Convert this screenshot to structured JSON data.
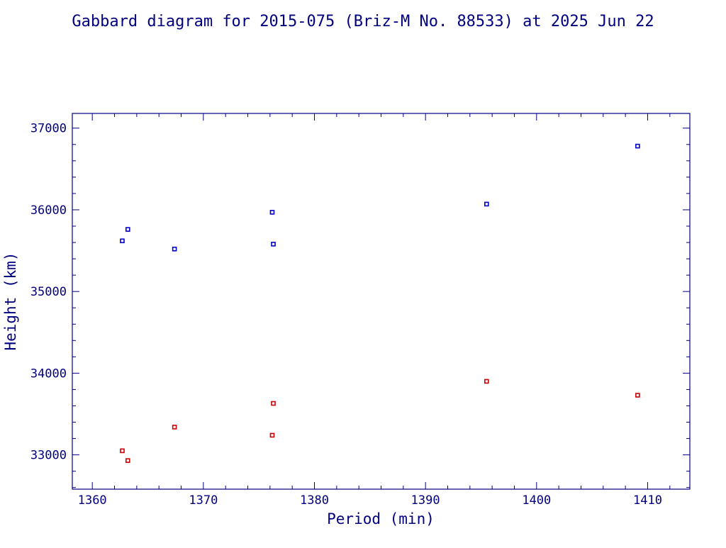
{
  "chart_data": {
    "type": "scatter",
    "title": "Gabbard diagram for 2015-075 (Briz-M No. 88533) at 2025 Jun 22",
    "xlabel": "Period (min)",
    "ylabel": "Height (km)",
    "xlim": [
      1358.2,
      1413.8
    ],
    "ylim": [
      32580,
      37180
    ],
    "x_ticks": [
      1360,
      1370,
      1380,
      1390,
      1400,
      1410
    ],
    "y_ticks": [
      33000,
      34000,
      35000,
      36000,
      37000
    ],
    "x_minor_step": 2,
    "y_minor_step": 200,
    "grid": false,
    "legend": "none",
    "colors": {
      "axis": "#000080",
      "text": "#000080",
      "apogee": "#0000cc",
      "perigee": "#cc0000"
    },
    "series": [
      {
        "role": "apogee",
        "points": [
          [
            1362.7,
            35620
          ],
          [
            1363.2,
            35760
          ],
          [
            1367.4,
            35520
          ],
          [
            1376.2,
            35970
          ],
          [
            1376.3,
            35580
          ],
          [
            1395.5,
            36070
          ],
          [
            1409.1,
            36780
          ]
        ]
      },
      {
        "role": "perigee",
        "points": [
          [
            1362.7,
            33050
          ],
          [
            1363.2,
            32930
          ],
          [
            1367.4,
            33340
          ],
          [
            1376.2,
            33240
          ],
          [
            1376.3,
            33630
          ],
          [
            1395.5,
            33900
          ],
          [
            1409.1,
            33730
          ]
        ]
      }
    ]
  }
}
